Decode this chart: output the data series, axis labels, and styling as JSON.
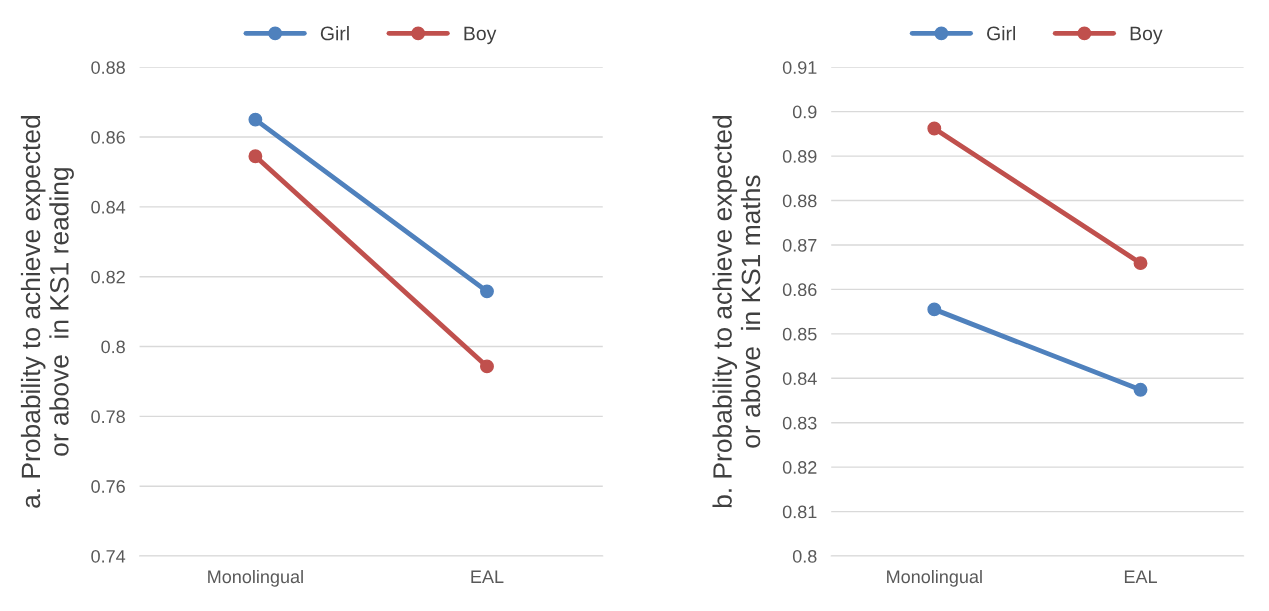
{
  "chart_data": [
    {
      "type": "line",
      "ylabel": "a. Probability to achieve expected\nor above  in KS1 reading",
      "categories": [
        "Monolingual",
        "EAL"
      ],
      "series": [
        {
          "name": "Girl",
          "color": "#4f81bd",
          "values": [
            0.865,
            0.8158
          ]
        },
        {
          "name": "Boy",
          "color": "#c0504d",
          "values": [
            0.8545,
            0.7943
          ]
        }
      ],
      "ylim": [
        0.74,
        0.88
      ],
      "yticks": [
        0.74,
        0.76,
        0.78,
        0.8,
        0.82,
        0.84,
        0.86,
        0.88
      ],
      "grid": "y",
      "legend": "top",
      "marker": "circle",
      "line_style": "solid"
    },
    {
      "type": "line",
      "ylabel": "b. Probability to achieve expected\nor above  in KS1 maths",
      "categories": [
        "Monolingual",
        "EAL"
      ],
      "series": [
        {
          "name": "Girl",
          "color": "#4f81bd",
          "values": [
            0.8555,
            0.8374
          ]
        },
        {
          "name": "Boy",
          "color": "#c0504d",
          "values": [
            0.8962,
            0.8659
          ]
        }
      ],
      "ylim": [
        0.8,
        0.91
      ],
      "yticks": [
        0.8,
        0.81,
        0.82,
        0.83,
        0.84,
        0.85,
        0.86,
        0.87,
        0.88,
        0.89,
        0.9,
        0.91
      ],
      "grid": "y",
      "legend": "top",
      "marker": "circle",
      "line_style": "solid"
    }
  ]
}
